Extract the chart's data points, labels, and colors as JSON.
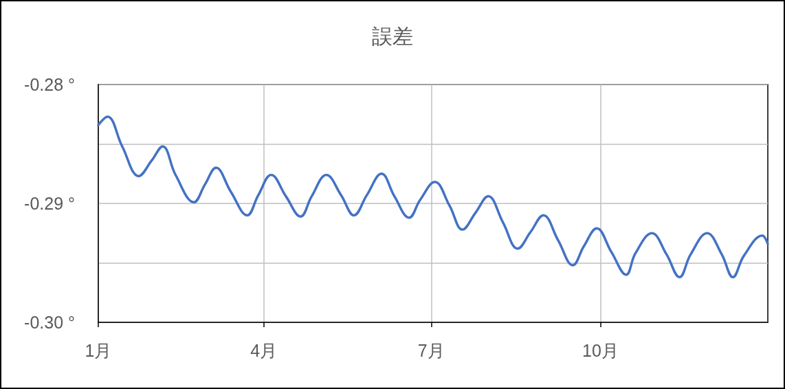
{
  "chart_data": {
    "type": "line",
    "title": "誤差",
    "x": [
      "--01-01",
      "--01-06",
      "--01-14",
      "--01-23",
      "--01-30",
      "--02-05",
      "--02-12",
      "--02-22",
      "--02-28",
      "--03-06",
      "--03-14",
      "--03-23",
      "--03-29",
      "--04-05",
      "--04-13",
      "--04-21",
      "--04-27",
      "--05-05",
      "--05-13",
      "--05-20",
      "--05-27",
      "--06-04",
      "--06-11",
      "--06-19",
      "--06-25",
      "--07-03",
      "--07-11",
      "--07-18",
      "--07-25",
      "--08-01",
      "--08-09",
      "--08-17",
      "--08-24",
      "--08-31",
      "--09-08",
      "--09-16",
      "--09-22",
      "--09-29",
      "--10-07",
      "--10-15",
      "--10-20",
      "--10-29",
      "--11-06",
      "--11-13",
      "--11-19",
      "--11-28",
      "--12-06",
      "--12-12",
      "--12-18",
      "--12-28",
      "--12-31"
    ],
    "values": [
      -0.2834,
      -0.2827,
      -0.2852,
      -0.2877,
      -0.2864,
      -0.2852,
      -0.2876,
      -0.2899,
      -0.2884,
      -0.287,
      -0.289,
      -0.291,
      -0.2893,
      -0.2876,
      -0.2894,
      -0.2911,
      -0.2894,
      -0.2876,
      -0.2893,
      -0.291,
      -0.2893,
      -0.2875,
      -0.2894,
      -0.2912,
      -0.2897,
      -0.2882,
      -0.2902,
      -0.2922,
      -0.2908,
      -0.2894,
      -0.2916,
      -0.2938,
      -0.2924,
      -0.291,
      -0.2931,
      -0.2952,
      -0.2936,
      -0.2921,
      -0.2941,
      -0.296,
      -0.2942,
      -0.2925,
      -0.2943,
      -0.2962,
      -0.2943,
      -0.2925,
      -0.2943,
      -0.2962,
      -0.2944,
      -0.2927,
      -0.2934
    ],
    "color": "#4472c4",
    "xlim": [
      "--01-01",
      "--12-31"
    ],
    "xticks": [
      {
        "value": "--01-01",
        "label": "1月"
      },
      {
        "value": "--04-01",
        "label": "4月"
      },
      {
        "value": "--07-01",
        "label": "7月"
      },
      {
        "value": "--10-01",
        "label": "10月"
      }
    ],
    "ylim": [
      -0.3,
      -0.28
    ],
    "yticks": [
      {
        "value": -0.3,
        "label": "-0.30 °"
      },
      {
        "value": -0.295,
        "label": null
      },
      {
        "value": -0.29,
        "label": "-0.29 °"
      },
      {
        "value": -0.285,
        "label": null
      },
      {
        "value": -0.28,
        "label": "-0.28 °"
      }
    ],
    "grid": true
  }
}
